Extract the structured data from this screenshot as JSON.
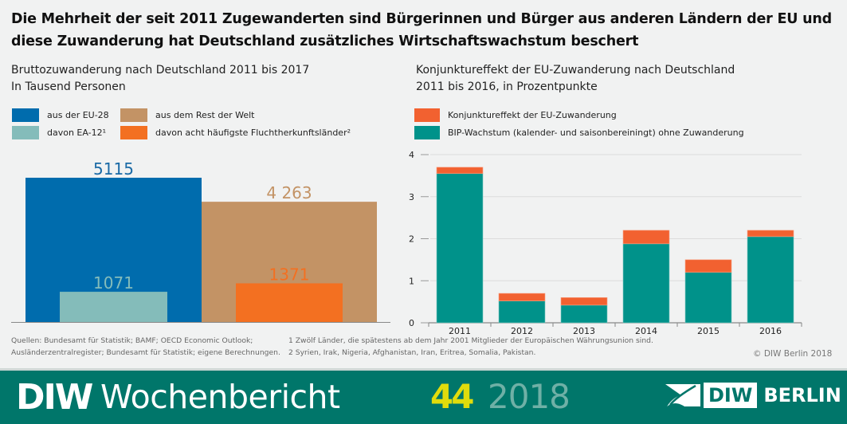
{
  "title": "Die Mehrheit der seit 2011 Zugewanderten sind Bürgerinnen und Bürger aus anderen Ländern der EU und diese Zuwanderung hat Deutschland zusätzliches Wirtschaftswachstum beschert",
  "colors": {
    "eu28": "#006cad",
    "ea12": "#84bcba",
    "rest": "#c39365",
    "flucht": "#f37021",
    "konjunktur": "#f26130",
    "bip": "#00928a",
    "banner": "#00766a",
    "issue": "#e1dc0c"
  },
  "chart_data": [
    {
      "type": "bar",
      "title": "Bruttozuwanderung nach Deutschland 2011 bis 2017",
      "subtitle": "In Tausend Personen",
      "legend": [
        {
          "label": "aus der EU-28",
          "color": "#006cad"
        },
        {
          "label": "aus dem Rest der Welt",
          "color": "#c39365"
        },
        {
          "label": "davon EA-12¹",
          "color": "#84bcba"
        },
        {
          "label": "davon acht häufigste Fluchtherkunftsländer²",
          "color": "#f37021"
        }
      ],
      "legend_position": "top-left",
      "series": [
        {
          "name": "aus der EU-28",
          "value": 5115,
          "label": "5115",
          "color": "#006cad"
        },
        {
          "name": "aus dem Rest der Welt",
          "value": 4263,
          "label": "4 263",
          "color": "#c39365"
        },
        {
          "name": "davon EA-12¹",
          "value": 1071,
          "label": "1071",
          "color": "#84bcba",
          "parent": "aus der EU-28"
        },
        {
          "name": "davon acht häufigste Fluchtherkunftsländer²",
          "value": 1371,
          "label": "1371",
          "color": "#f37021",
          "parent": "aus dem Rest der Welt"
        }
      ],
      "ylim": [
        0,
        5500
      ],
      "grid": false
    },
    {
      "type": "bar",
      "stacked": true,
      "title": "Konjunktureffekt der EU-Zuwanderung nach Deutschland",
      "subtitle": "2011 bis 2016, in Prozentpunkte",
      "categories": [
        "2011",
        "2012",
        "2013",
        "2014",
        "2015",
        "2016"
      ],
      "series": [
        {
          "name": "BIP-Wachstum (kalender- und saisonbereiningt) ohne Zuwanderung",
          "color": "#00928a",
          "values": [
            3.55,
            0.52,
            0.42,
            1.88,
            1.2,
            2.05
          ]
        },
        {
          "name": "Konjunktureffekt der EU-Zuwanderung",
          "color": "#f26130",
          "values": [
            0.15,
            0.18,
            0.18,
            0.32,
            0.3,
            0.15
          ]
        }
      ],
      "legend": [
        {
          "label": "Konjunktureffekt der EU-Zuwanderung",
          "color": "#f26130"
        },
        {
          "label": "BIP-Wachstum (kalender- und saisonbereiningt) ohne Zuwanderung",
          "color": "#00928a"
        }
      ],
      "legend_position": "top-left",
      "yticks": [
        "0",
        "1",
        "2",
        "3",
        "4"
      ],
      "ylim": [
        0,
        4
      ],
      "grid": true
    }
  ],
  "footnotes": {
    "sources_line1": "Quellen: Bundesamt für Statistik; BAMF; OECD Economic Outlook;",
    "sources_line2": "Ausländerzentralregister; Bundesamt für Statistik; eigene Berechnungen.",
    "note1": "1 Zwölf Länder, die spätestens ab dem Jahr 2001 Mitglieder der Europäischen Währungsunion sind.",
    "note2": "2 Syrien, Irak, Nigeria, Afghanistan, Iran, Eritrea, Somalia, Pakistan.",
    "copyright": "© DIW Berlin 2018"
  },
  "banner": {
    "brand_bold": "DIW",
    "brand_name": "Wochenbericht",
    "issue": "44",
    "year": "2018",
    "logo_box": "DIW",
    "logo_text": "BERLIN"
  }
}
